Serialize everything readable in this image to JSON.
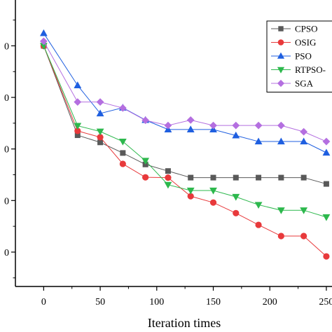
{
  "chart_data": {
    "type": "line",
    "xlabel": "Iteration times",
    "ylabel": "",
    "xlim": [
      -25,
      255
    ],
    "ylim": [
      0,
      100
    ],
    "x_ticks": [
      0,
      50,
      100,
      150,
      200,
      250
    ],
    "x_tick_labels": [
      "0",
      "50",
      "100",
      "150",
      "200",
      "250"
    ],
    "y_ticks": [
      12,
      30,
      48,
      66,
      84,
      102
    ],
    "y_tick_labels": [
      "0",
      "0",
      "0",
      "0",
      "0",
      "0"
    ],
    "grid": false,
    "legend_position": "top-right",
    "x": [
      0,
      30,
      50,
      70,
      90,
      110,
      130,
      150,
      170,
      190,
      210,
      230,
      250
    ],
    "series": [
      {
        "name": "CPSO",
        "marker": "square",
        "color": "#595959",
        "values": [
          84,
          52.8,
          50.3,
          46.6,
          42.6,
          40.3,
          38.0,
          38.0,
          38.0,
          38.0,
          38.0,
          38.0,
          35.8
        ]
      },
      {
        "name": "OSIG",
        "marker": "circle",
        "color": "#e8393b",
        "values": [
          84,
          54.3,
          52.1,
          42.8,
          38.1,
          38.0,
          31.5,
          29.3,
          25.6,
          21.5,
          17.6,
          17.6,
          10.5
        ]
      },
      {
        "name": "PSO",
        "marker": "triangle-up",
        "color": "#1f5fe0",
        "values": [
          88.4,
          70.2,
          60.4,
          62.4,
          58.1,
          54.8,
          54.8,
          54.8,
          52.7,
          50.6,
          50.6,
          50.6,
          46.7
        ]
      },
      {
        "name": "RTPSO-",
        "marker": "triangle-down",
        "color": "#2db84d",
        "values": [
          84,
          56.1,
          54.1,
          50.6,
          43.9,
          35.5,
          33.5,
          33.5,
          31.3,
          28.5,
          26.6,
          26.6,
          24.2
        ]
      },
      {
        "name": "SGA",
        "marker": "diamond",
        "color": "#b46fe0",
        "values": [
          85.6,
          64.4,
          64.4,
          62.3,
          58.0,
          56.2,
          58.1,
          56.2,
          56.2,
          56.2,
          56.2,
          54.0,
          50.6
        ]
      }
    ]
  }
}
